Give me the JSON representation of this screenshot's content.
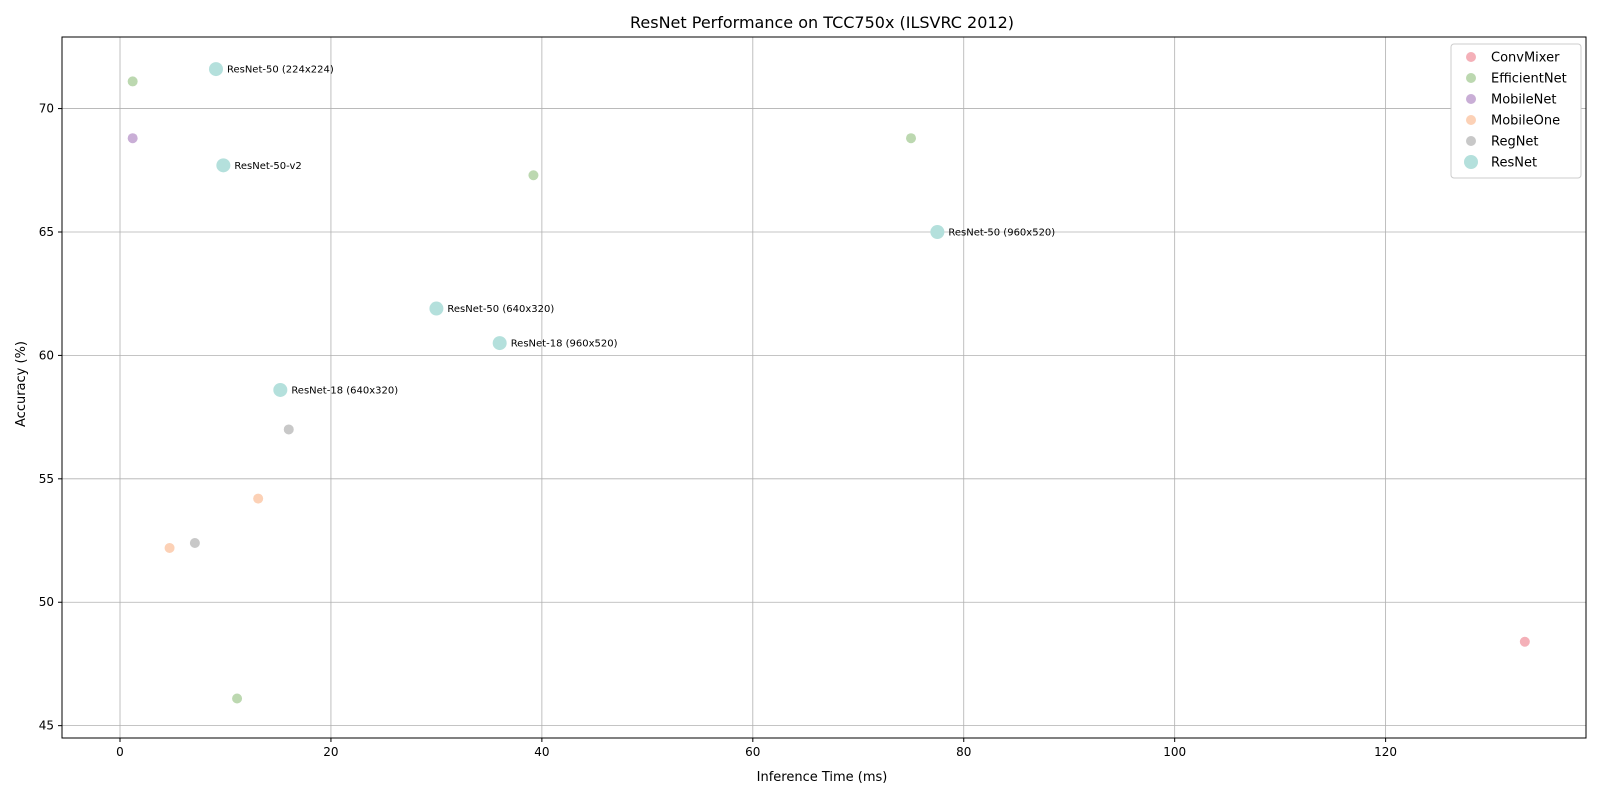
{
  "chart_data": {
    "type": "scatter",
    "title": "ResNet Performance on TCC750x (ILSVRC 2012)",
    "xlabel": "Inference Time (ms)",
    "ylabel": "Accuracy (%)",
    "xlim": [
      -5.5,
      139
    ],
    "ylim": [
      44.5,
      72.9
    ],
    "xticks": [
      0,
      20,
      40,
      60,
      80,
      100,
      120
    ],
    "yticks": [
      45,
      50,
      55,
      60,
      65,
      70
    ],
    "grid": true,
    "legend_position": "top-right",
    "series": [
      {
        "name": "ConvMixer",
        "color": "#f4b0b8",
        "points": [
          {
            "x": 133.2,
            "y": 48.4
          }
        ]
      },
      {
        "name": "EfficientNet",
        "color": "#bcd8b0",
        "points": [
          {
            "x": 1.2,
            "y": 71.1
          },
          {
            "x": 39.2,
            "y": 67.3
          },
          {
            "x": 75.0,
            "y": 68.8
          },
          {
            "x": 11.1,
            "y": 46.1
          }
        ]
      },
      {
        "name": "MobileNet",
        "color": "#c9aed6",
        "points": [
          {
            "x": 1.2,
            "y": 68.8
          }
        ]
      },
      {
        "name": "MobileOne",
        "color": "#fcd1b6",
        "points": [
          {
            "x": 13.1,
            "y": 54.2
          },
          {
            "x": 4.7,
            "y": 52.2
          }
        ]
      },
      {
        "name": "RegNet",
        "color": "#c8c8c8",
        "points": [
          {
            "x": 16.0,
            "y": 57.0
          },
          {
            "x": 7.1,
            "y": 52.4
          }
        ]
      },
      {
        "name": "ResNet",
        "color": "#b4e0dc",
        "points": [
          {
            "x": 9.1,
            "y": 71.6,
            "label": "ResNet-50 (224x224)"
          },
          {
            "x": 9.8,
            "y": 67.7,
            "label": "ResNet-50-v2"
          },
          {
            "x": 77.5,
            "y": 65.0,
            "label": "ResNet-50 (960x520)"
          },
          {
            "x": 30.0,
            "y": 61.9,
            "label": "ResNet-50 (640x320)"
          },
          {
            "x": 36.0,
            "y": 60.5,
            "label": "ResNet-18 (960x520)"
          },
          {
            "x": 15.2,
            "y": 58.6,
            "label": "ResNet-18 (640x320)"
          }
        ]
      }
    ]
  }
}
